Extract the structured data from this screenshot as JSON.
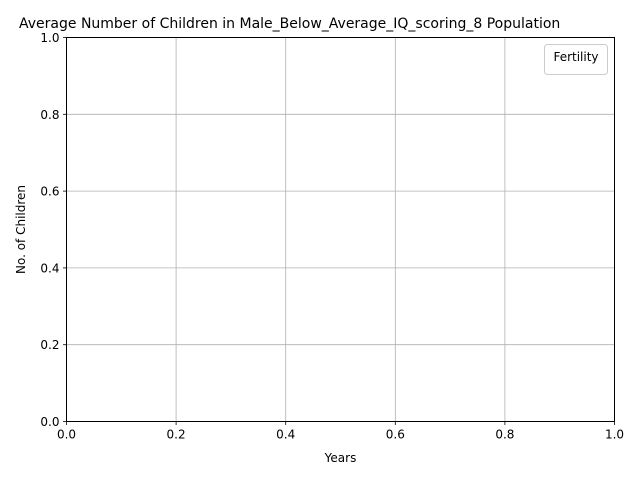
{
  "chart_data": {
    "type": "line",
    "title": "Average Number of Children in Male_Below_Average_IQ_scoring_8 Population",
    "xlabel": "Years",
    "ylabel": "No. of Children",
    "xlim": [
      0.0,
      1.0
    ],
    "ylim": [
      0.0,
      1.0
    ],
    "xticks": [
      "0.0",
      "0.2",
      "0.4",
      "0.6",
      "0.8",
      "1.0"
    ],
    "yticks": [
      "0.0",
      "0.2",
      "0.4",
      "0.6",
      "0.8",
      "1.0"
    ],
    "grid": true,
    "legend": {
      "title": "Fertility",
      "placement": "top-right",
      "entries": []
    },
    "series": []
  }
}
